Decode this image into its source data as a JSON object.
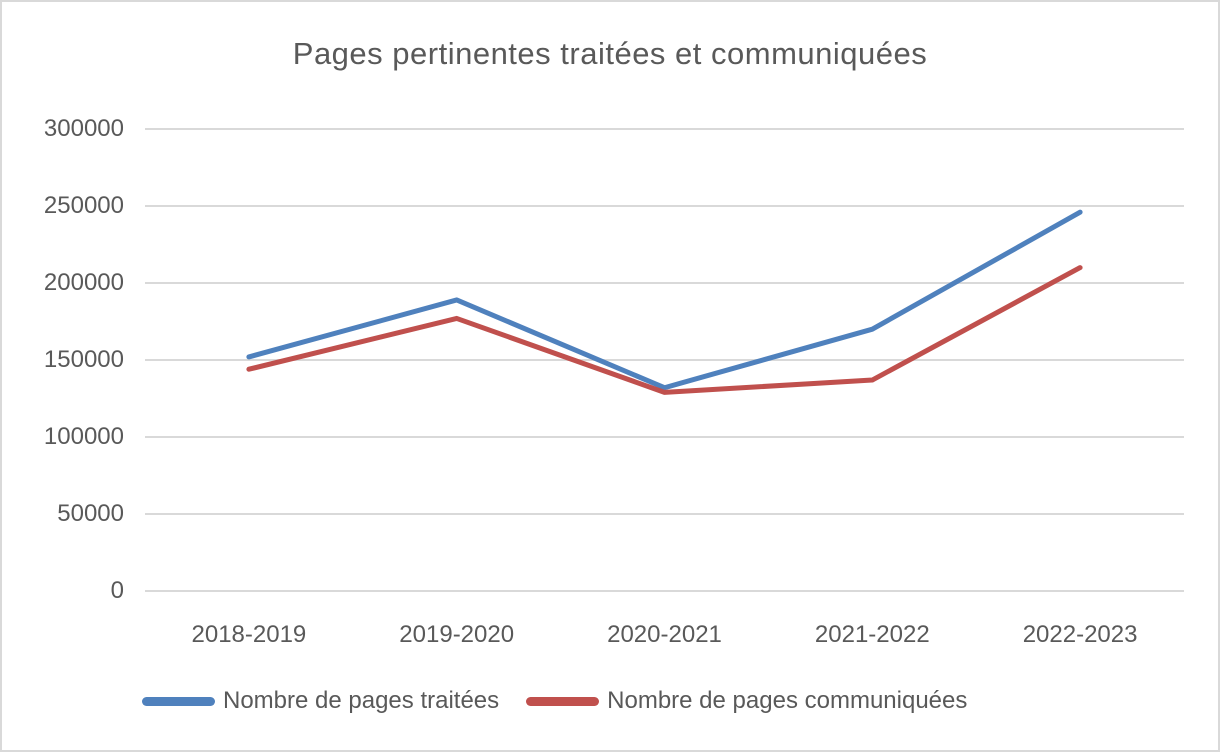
{
  "chart_data": {
    "type": "line",
    "title": "Pages pertinentes traitées et communiquées",
    "categories": [
      "2018-2019",
      "2019-2020",
      "2020-2021",
      "2021-2022",
      "2022-2023"
    ],
    "series": [
      {
        "name": "Nombre de pages traitées",
        "color": "#4F81BD",
        "values": [
          152000,
          189000,
          132000,
          170000,
          246000
        ]
      },
      {
        "name": "Nombre de pages communiquées",
        "color": "#C0504D",
        "values": [
          144000,
          177000,
          129000,
          137000,
          210000
        ]
      }
    ],
    "xlabel": "",
    "ylabel": "",
    "ylim": [
      0,
      300000
    ],
    "ytick_step": 50000,
    "ytick_labels": [
      "0",
      "50000",
      "100000",
      "150000",
      "200000",
      "250000",
      "300000"
    ],
    "grid": true,
    "legend_position": "bottom",
    "colors": {
      "text": "#595959",
      "gridline": "#d9d9d9",
      "frame_border": "#d9d9d9",
      "background": "#ffffff"
    }
  }
}
